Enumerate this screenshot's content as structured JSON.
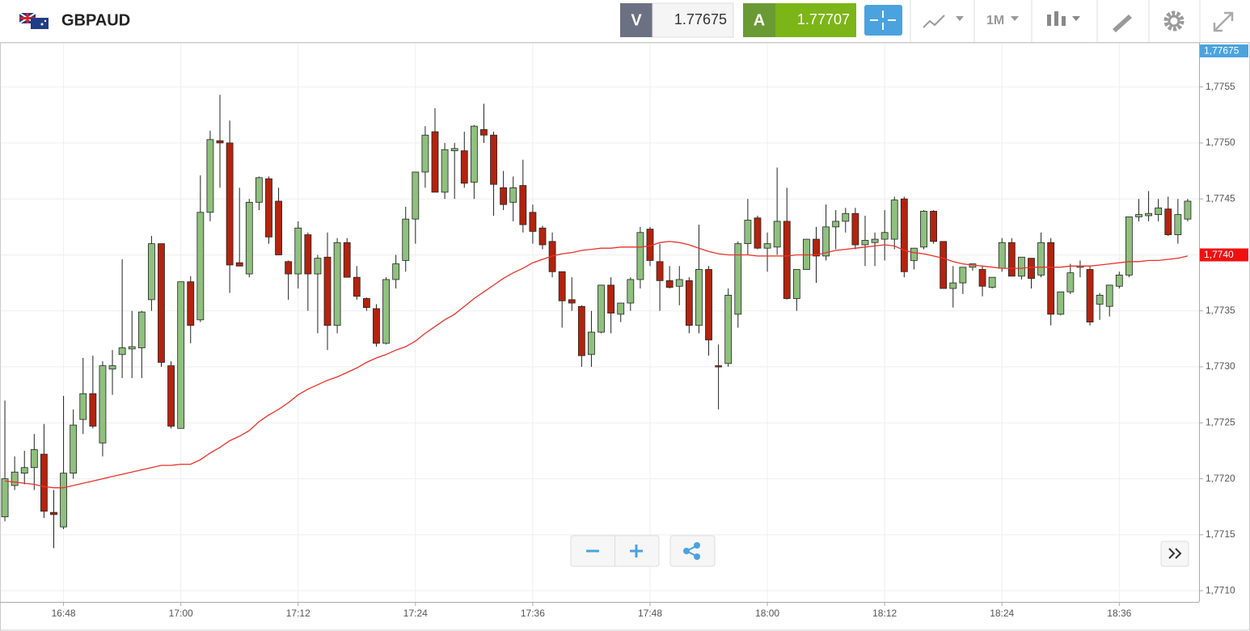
{
  "toolbar": {
    "symbol": "GBPAUD",
    "bid_label": "V",
    "bid": 1.77675,
    "ask_label": "A",
    "ask": 1.77707,
    "timeframe": "1M"
  },
  "chart_data": {
    "type": "candlestick",
    "categories": [
      null,
      null,
      null,
      null,
      null,
      null,
      "16:48",
      null,
      null,
      null,
      null,
      null,
      null,
      null,
      null,
      null,
      null,
      null,
      "17:00",
      null,
      null,
      null,
      null,
      null,
      null,
      null,
      null,
      null,
      null,
      null,
      "17:12",
      null,
      null,
      null,
      null,
      null,
      null,
      null,
      null,
      null,
      null,
      null,
      "17:24",
      null,
      null,
      null,
      null,
      null,
      null,
      null,
      null,
      null,
      null,
      null,
      "17:36",
      null,
      null,
      null,
      null,
      null,
      null,
      null,
      null,
      null,
      null,
      null,
      "17:48",
      null,
      null,
      null,
      null,
      null,
      null,
      null,
      null,
      null,
      null,
      null,
      "18:00",
      null,
      null,
      null,
      null,
      null,
      null,
      null,
      null,
      null,
      null,
      null,
      "18:12",
      null,
      null,
      null,
      null,
      null,
      null,
      null,
      null,
      null,
      null,
      null,
      "18:24",
      null,
      null,
      null,
      null,
      null,
      null,
      null,
      null,
      null,
      null,
      null,
      "18:36",
      null,
      null,
      null,
      null,
      null,
      null,
      null
    ],
    "open": [
      1.77166,
      1.77194,
      1.77205,
      1.7721,
      1.77222,
      1.7717,
      1.77157,
      1.77205,
      1.77253,
      1.77276,
      1.77232,
      1.77298,
      1.77311,
      1.77316,
      1.77317,
      1.7736,
      1.7741,
      1.77301,
      1.77245,
      1.77376,
      1.77342,
      1.77438,
      1.77502,
      1.775,
      1.77393,
      1.77383,
      1.77447,
      1.77468,
      1.77448,
      1.77394,
      1.77383,
      1.77418,
      1.77383,
      1.77398,
      1.77337,
      1.77411,
      1.7738,
      1.77361,
      1.77352,
      1.77321,
      1.77378,
      1.77395,
      1.77432,
      1.77474,
      1.7751,
      1.77456,
      1.77493,
      1.77493,
      1.77465,
      1.77512,
      1.77507,
      1.7746,
      1.77447,
      1.77462,
      1.77438,
      1.77424,
      1.77412,
      1.77385,
      1.7736,
      1.77354,
      1.77311,
      1.77331,
      1.77373,
      1.77347,
      1.77357,
      1.77378,
      1.77423,
      1.77394,
      1.77377,
      1.77372,
      1.77377,
      1.77337,
      1.77387,
      1.77301,
      1.77303,
      1.77347,
      1.7741,
      1.77433,
      1.77406,
      1.77407,
      1.7743,
      1.77361,
      1.77387,
      1.77414,
      1.77399,
      1.77425,
      1.7743,
      1.77437,
      1.77409,
      1.77411,
      1.77414,
      1.77414,
      1.7745,
      1.77395,
      1.77407,
      1.77439,
      1.77412,
      1.7737,
      1.77375,
      1.77389,
      1.77387,
      1.77371,
      1.77388,
      1.77411,
      1.77381,
      1.77397,
      1.77382,
      1.77411,
      1.77347,
      1.77367,
      1.77389,
      1.77387,
      1.77356,
      1.77354,
      1.77372,
      1.77382,
      1.77434,
      1.77435,
      1.77436,
      1.77441,
      1.77418,
      1.77432
    ],
    "high": [
      1.7727,
      1.7722,
      1.77225,
      1.7724,
      1.77249,
      1.7719,
      1.77274,
      1.77262,
      1.77308,
      1.7731,
      1.77305,
      1.77315,
      1.77396,
      1.7735,
      1.7735,
      1.77417,
      1.7741,
      1.77305,
      1.77376,
      1.77381,
      1.77471,
      1.77511,
      1.77543,
      1.7752,
      1.7746,
      1.7745,
      1.7747,
      1.7747,
      1.7746,
      1.77395,
      1.7743,
      1.7742,
      1.774,
      1.7742,
      1.77415,
      1.77415,
      1.7739,
      1.77362,
      1.77356,
      1.7738,
      1.774,
      1.77443,
      1.77474,
      1.77515,
      1.77531,
      1.775,
      1.775,
      1.7751,
      1.77516,
      1.77535,
      1.7751,
      1.77475,
      1.7747,
      1.77485,
      1.77445,
      1.77426,
      1.7742,
      1.77385,
      1.7738,
      1.77355,
      1.7735,
      1.77373,
      1.7738,
      1.77357,
      1.7738,
      1.77425,
      1.77425,
      1.7741,
      1.7739,
      1.7739,
      1.7738,
      1.77427,
      1.7739,
      1.7732,
      1.7737,
      1.77412,
      1.7745,
      1.77435,
      1.7742,
      1.77478,
      1.7746,
      1.77387,
      1.77414,
      1.77425,
      1.77445,
      1.7744,
      1.77442,
      1.77442,
      1.77435,
      1.7742,
      1.7744,
      1.77452,
      1.77452,
      1.77406,
      1.7744,
      1.7744,
      1.77412,
      1.7739,
      1.77389,
      1.77392,
      1.7739,
      1.7738,
      1.77415,
      1.77415,
      1.77398,
      1.77397,
      1.7742,
      1.77415,
      1.77367,
      1.77392,
      1.77395,
      1.7739,
      1.77366,
      1.77373,
      1.77385,
      1.77434,
      1.7745,
      1.77457,
      1.7745,
      1.77452,
      1.7745,
      1.7745
    ],
    "low": [
      1.77162,
      1.7719,
      1.77195,
      1.7719,
      1.77165,
      1.77138,
      1.77155,
      1.772,
      1.7724,
      1.77245,
      1.7722,
      1.77275,
      1.7729,
      1.7729,
      1.7729,
      1.7735,
      1.773,
      1.77245,
      1.77245,
      1.77321,
      1.7734,
      1.7743,
      1.7746,
      1.77366,
      1.7739,
      1.7738,
      1.7744,
      1.7741,
      1.774,
      1.7736,
      1.7737,
      1.7735,
      1.7733,
      1.77315,
      1.7733,
      1.7738,
      1.7736,
      1.7735,
      1.77318,
      1.7732,
      1.7737,
      1.77385,
      1.7741,
      1.7746,
      1.77456,
      1.7745,
      1.7745,
      1.7746,
      1.7745,
      1.775,
      1.77435,
      1.7744,
      1.7743,
      1.7742,
      1.7741,
      1.77405,
      1.7738,
      1.77335,
      1.7735,
      1.773,
      1.773,
      1.7733,
      1.7733,
      1.7734,
      1.7735,
      1.7737,
      1.7739,
      1.7735,
      1.7737,
      1.77355,
      1.7733,
      1.7733,
      1.7731,
      1.77262,
      1.773,
      1.77335,
      1.774,
      1.77405,
      1.77385,
      1.774,
      1.7736,
      1.7735,
      1.77387,
      1.77375,
      1.77395,
      1.77405,
      1.7742,
      1.77405,
      1.7739,
      1.7739,
      1.77395,
      1.77405,
      1.7738,
      1.77387,
      1.77405,
      1.7741,
      1.7737,
      1.77353,
      1.77365,
      1.77386,
      1.77363,
      1.7737,
      1.77385,
      1.77381,
      1.77378,
      1.7737,
      1.7738,
      1.77337,
      1.77346,
      1.77365,
      1.7738,
      1.77337,
      1.77342,
      1.77345,
      1.7737,
      1.7738,
      1.7743,
      1.7743,
      1.7743,
      1.77417,
      1.7741,
      1.7743
    ],
    "close": [
      1.772,
      1.77206,
      1.7721,
      1.77226,
      1.77171,
      1.77168,
      1.77205,
      1.77248,
      1.77276,
      1.77247,
      1.77301,
      1.77301,
      1.77317,
      1.77318,
      1.77349,
      1.7741,
      1.77304,
      1.77247,
      1.77376,
      1.77337,
      1.77438,
      1.77503,
      1.775,
      1.77391,
      1.7739,
      1.77447,
      1.77469,
      1.77416,
      1.774,
      1.77383,
      1.77424,
      1.77383,
      1.77397,
      1.77337,
      1.77411,
      1.7738,
      1.77363,
      1.77353,
      1.77321,
      1.77378,
      1.77392,
      1.77432,
      1.77474,
      1.77507,
      1.77456,
      1.77494,
      1.77495,
      1.77464,
      1.77515,
      1.77507,
      1.77463,
      1.77445,
      1.7746,
      1.77427,
      1.77421,
      1.77409,
      1.77385,
      1.77359,
      1.77357,
      1.7731,
      1.77331,
      1.77373,
      1.77348,
      1.77357,
      1.77378,
      1.7742,
      1.77395,
      1.77377,
      1.77371,
      1.77378,
      1.77337,
      1.77387,
      1.77324,
      1.773,
      1.77364,
      1.7741,
      1.77431,
      1.77406,
      1.7741,
      1.7743,
      1.77361,
      1.77387,
      1.77414,
      1.77399,
      1.77425,
      1.7743,
      1.77437,
      1.77409,
      1.77413,
      1.77414,
      1.7742,
      1.77449,
      1.77385,
      1.77406,
      1.77439,
      1.77412,
      1.7737,
      1.77375,
      1.77389,
      1.77392,
      1.77372,
      1.7738,
      1.77411,
      1.77381,
      1.77398,
      1.77379,
      1.77411,
      1.77347,
      1.77367,
      1.77384,
      1.7739,
      1.7734,
      1.77364,
      1.77373,
      1.77382,
      1.77434,
      1.77436,
      1.77437,
      1.77442,
      1.77418,
      1.77436,
      1.77448
    ],
    "ma": {
      "color": "#e8322a",
      "values": [
        1.77198,
        1.77197,
        1.77196,
        1.77195,
        1.77193,
        1.77192,
        1.77192,
        1.77194,
        1.77196,
        1.77198,
        1.772,
        1.77202,
        1.77204,
        1.77206,
        1.77208,
        1.7721,
        1.77212,
        1.77212,
        1.77213,
        1.77213,
        1.77217,
        1.77223,
        1.77228,
        1.77234,
        1.77238,
        1.77243,
        1.77251,
        1.77257,
        1.77262,
        1.77268,
        1.77275,
        1.7728,
        1.77284,
        1.77288,
        1.77291,
        1.77295,
        1.77299,
        1.77304,
        1.77308,
        1.77311,
        1.77315,
        1.77318,
        1.77323,
        1.7733,
        1.77336,
        1.77342,
        1.77347,
        1.77354,
        1.77361,
        1.77367,
        1.77373,
        1.77379,
        1.77384,
        1.77388,
        1.77393,
        1.77396,
        1.77399,
        1.77401,
        1.77402,
        1.77404,
        1.77405,
        1.77406,
        1.77406,
        1.77407,
        1.77407,
        1.77407,
        1.77408,
        1.77411,
        1.77412,
        1.77411,
        1.77409,
        1.77406,
        1.77403,
        1.77401,
        1.774,
        1.774,
        1.774,
        1.77399,
        1.77399,
        1.77399,
        1.77399,
        1.774,
        1.774,
        1.774,
        1.77402,
        1.77404,
        1.77405,
        1.77406,
        1.77407,
        1.77408,
        1.77409,
        1.77408,
        1.77404,
        1.77402,
        1.77401,
        1.77399,
        1.77397,
        1.77394,
        1.77392,
        1.77391,
        1.7739,
        1.77389,
        1.77388,
        1.77388,
        1.77388,
        1.77389,
        1.77389,
        1.77389,
        1.77389,
        1.7739,
        1.7739,
        1.7739,
        1.77391,
        1.77392,
        1.77393,
        1.77394,
        1.77394,
        1.77395,
        1.77395,
        1.77396,
        1.77397,
        1.77399
      ]
    },
    "up_color": "#8fc07e",
    "down_color": "#b3230e",
    "ylim": [
      1.7709,
      1.77588
    ],
    "yticks": [
      {
        "value": 1.771,
        "label": "1,7710"
      },
      {
        "value": 1.7715,
        "label": "1,7715"
      },
      {
        "value": 1.772,
        "label": "1,7720"
      },
      {
        "value": 1.7725,
        "label": "1,7725"
      },
      {
        "value": 1.773,
        "label": "1,7730"
      },
      {
        "value": 1.7735,
        "label": "1,7735"
      },
      {
        "value": 1.774,
        "label": "1,7740"
      },
      {
        "value": 1.7745,
        "label": "1,7745"
      },
      {
        "value": 1.775,
        "label": "1,7750"
      },
      {
        "value": 1.7755,
        "label": "1,7755"
      }
    ],
    "grid": true,
    "price_badges": [
      {
        "value": 1.77675,
        "label": "1,77675",
        "color": "#4aa3df"
      },
      {
        "value": 1.774,
        "label": "1,7740",
        "color": "#f01010"
      }
    ]
  }
}
